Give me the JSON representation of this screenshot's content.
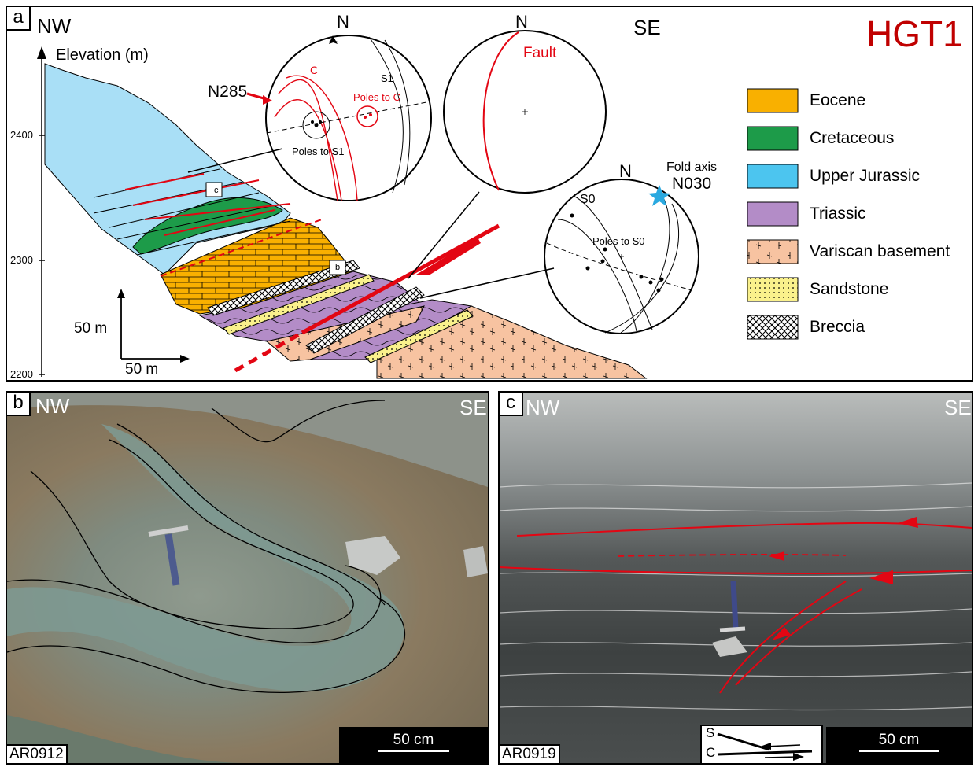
{
  "panel_a": {
    "letter": "a",
    "dir_left": "NW",
    "dir_right": "SE",
    "site": "HGT1",
    "elevation_label": "Elevation (m)",
    "elev_ticks": [
      "2400",
      "2300",
      "2200"
    ],
    "scale_vertical": "50 m",
    "scale_horizontal": "50 m",
    "stereo1": {
      "north": "N",
      "c_label": "C",
      "s1_label": "S1",
      "poles_c": "Poles to C",
      "poles_s1": "Poles to S1",
      "azimuth": "N285"
    },
    "stereo2": {
      "north": "N",
      "fault_label": "Fault"
    },
    "stereo3": {
      "north": "N",
      "s0_label": "S0",
      "poles_s0": "Poles to S0",
      "fold_axis_label": "Fold axis",
      "fold_axis_value": "N030"
    },
    "box_b": "b",
    "box_c": "c",
    "legend": [
      {
        "label": "Eocene",
        "color": "#f9b000",
        "pattern": "solid"
      },
      {
        "label": "Cretaceous",
        "color": "#1d9b49",
        "pattern": "solid"
      },
      {
        "label": "Upper Jurassic",
        "color": "#4cc5ef",
        "pattern": "solid"
      },
      {
        "label": "Triassic",
        "color": "#b38cc7",
        "pattern": "solid"
      },
      {
        "label": "Variscan basement",
        "color": "#f7c3a1",
        "pattern": "crosses"
      },
      {
        "label": "Sandstone",
        "color": "#faf18c",
        "pattern": "dots"
      },
      {
        "label": "Breccia",
        "color": "#ffffff",
        "pattern": "crosshatch"
      }
    ]
  },
  "panel_b": {
    "letter": "b",
    "dir_left": "NW",
    "dir_right": "SE",
    "photo_id": "AR0912",
    "scale_label": "50 cm"
  },
  "panel_c": {
    "letter": "c",
    "dir_left": "NW",
    "dir_right": "SE",
    "photo_id": "AR0919",
    "scale_label": "50 cm",
    "inset_s": "S",
    "inset_c": "C"
  },
  "colors": {
    "accent_red": "#e30613",
    "title_red": "#c00000",
    "jurassic": "#a9dff6",
    "triassic": "#b38cc7",
    "eocene": "#f9b000",
    "cretaceous": "#1d9b49",
    "basement": "#f7c3a1",
    "sandstone": "#faf18c",
    "star": "#2aa9e0"
  }
}
